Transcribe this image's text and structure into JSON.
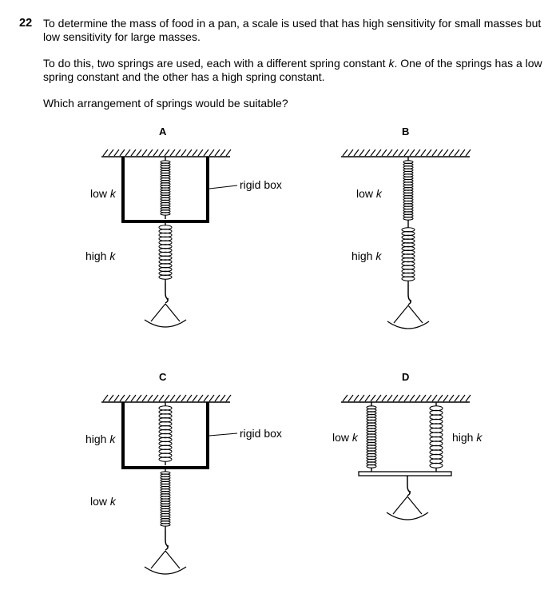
{
  "question": {
    "number": "22",
    "paragraph1": "To determine the mass of food in a pan, a scale is used that has high sensitivity for small masses but low sensitivity for large masses.",
    "paragraph2_pre": "To do this, two springs are used, each with a different spring constant ",
    "paragraph2_k": "k",
    "paragraph2_post": ". One of the springs has a low spring constant and the other has a high spring constant.",
    "prompt": "Which arrangement of springs would be suitable?"
  },
  "options": {
    "A": {
      "letter": "A",
      "upper_label": "low",
      "lower_label": "high",
      "box_label": "rigid box"
    },
    "B": {
      "letter": "B",
      "upper_label": "low",
      "lower_label": "high"
    },
    "C": {
      "letter": "C",
      "upper_label": "high",
      "lower_label": "low",
      "box_label": "rigid box"
    },
    "D": {
      "letter": "D",
      "left_label": "low",
      "right_label": "high"
    }
  },
  "k_symbol": "k"
}
